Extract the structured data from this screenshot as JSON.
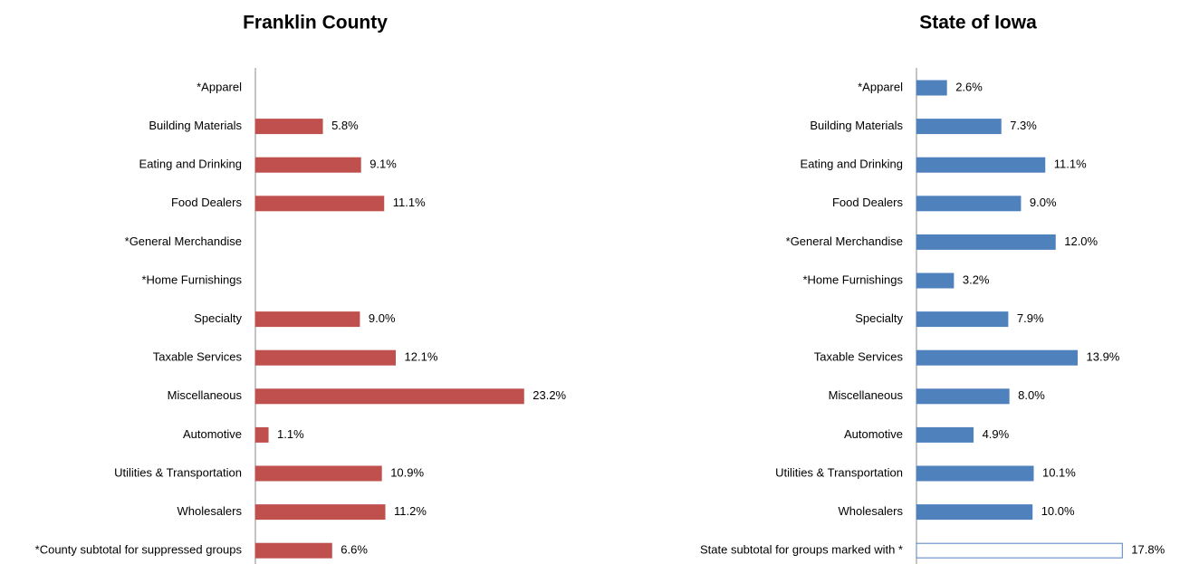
{
  "chart_data": [
    {
      "type": "bar",
      "orientation": "horizontal",
      "title": "Franklin County",
      "color": "#c0504d",
      "categories": [
        "*Apparel",
        "Building Materials",
        "Eating and Drinking",
        "Food Dealers",
        "*General Merchandise",
        "*Home Furnishings",
        "Specialty",
        "Taxable Services",
        "Miscellaneous",
        "Automotive",
        "Utilities & Transportation",
        "Wholesalers",
        "*County subtotal for suppressed groups"
      ],
      "values": [
        null,
        5.8,
        9.1,
        11.1,
        null,
        null,
        9.0,
        12.1,
        23.2,
        1.1,
        10.9,
        11.2,
        6.6
      ],
      "value_labels": [
        null,
        "5.8%",
        "9.1%",
        "11.1%",
        null,
        null,
        "9.0%",
        "12.1%",
        "23.2%",
        "1.1%",
        "10.9%",
        "11.2%",
        "6.6%"
      ]
    },
    {
      "type": "bar",
      "orientation": "horizontal",
      "title": "State of Iowa",
      "color": "#4f81bd",
      "colors": [
        "#4f81bd",
        "#4f81bd",
        "#4f81bd",
        "#4f81bd",
        "#4f81bd",
        "#4f81bd",
        "#4f81bd",
        "#4f81bd",
        "#4f81bd",
        "#4f81bd",
        "#4f81bd",
        "#4f81bd",
        "#ffffff"
      ],
      "categories": [
        "*Apparel",
        "Building Materials",
        "Eating and Drinking",
        "Food Dealers",
        "*General Merchandise",
        "*Home Furnishings",
        "Specialty",
        "Taxable Services",
        "Miscellaneous",
        "Automotive",
        "Utilities & Transportation",
        "Wholesalers",
        "State subtotal for groups marked with *"
      ],
      "values": [
        2.6,
        7.3,
        11.1,
        9.0,
        12.0,
        3.2,
        7.9,
        13.9,
        8.0,
        4.9,
        10.1,
        10.0,
        17.8
      ],
      "value_labels": [
        "2.6%",
        "7.3%",
        "11.1%",
        "9.0%",
        "12.0%",
        "3.2%",
        "7.9%",
        "13.9%",
        "8.0%",
        "4.9%",
        "10.1%",
        "10.0%",
        "17.8%"
      ]
    }
  ]
}
